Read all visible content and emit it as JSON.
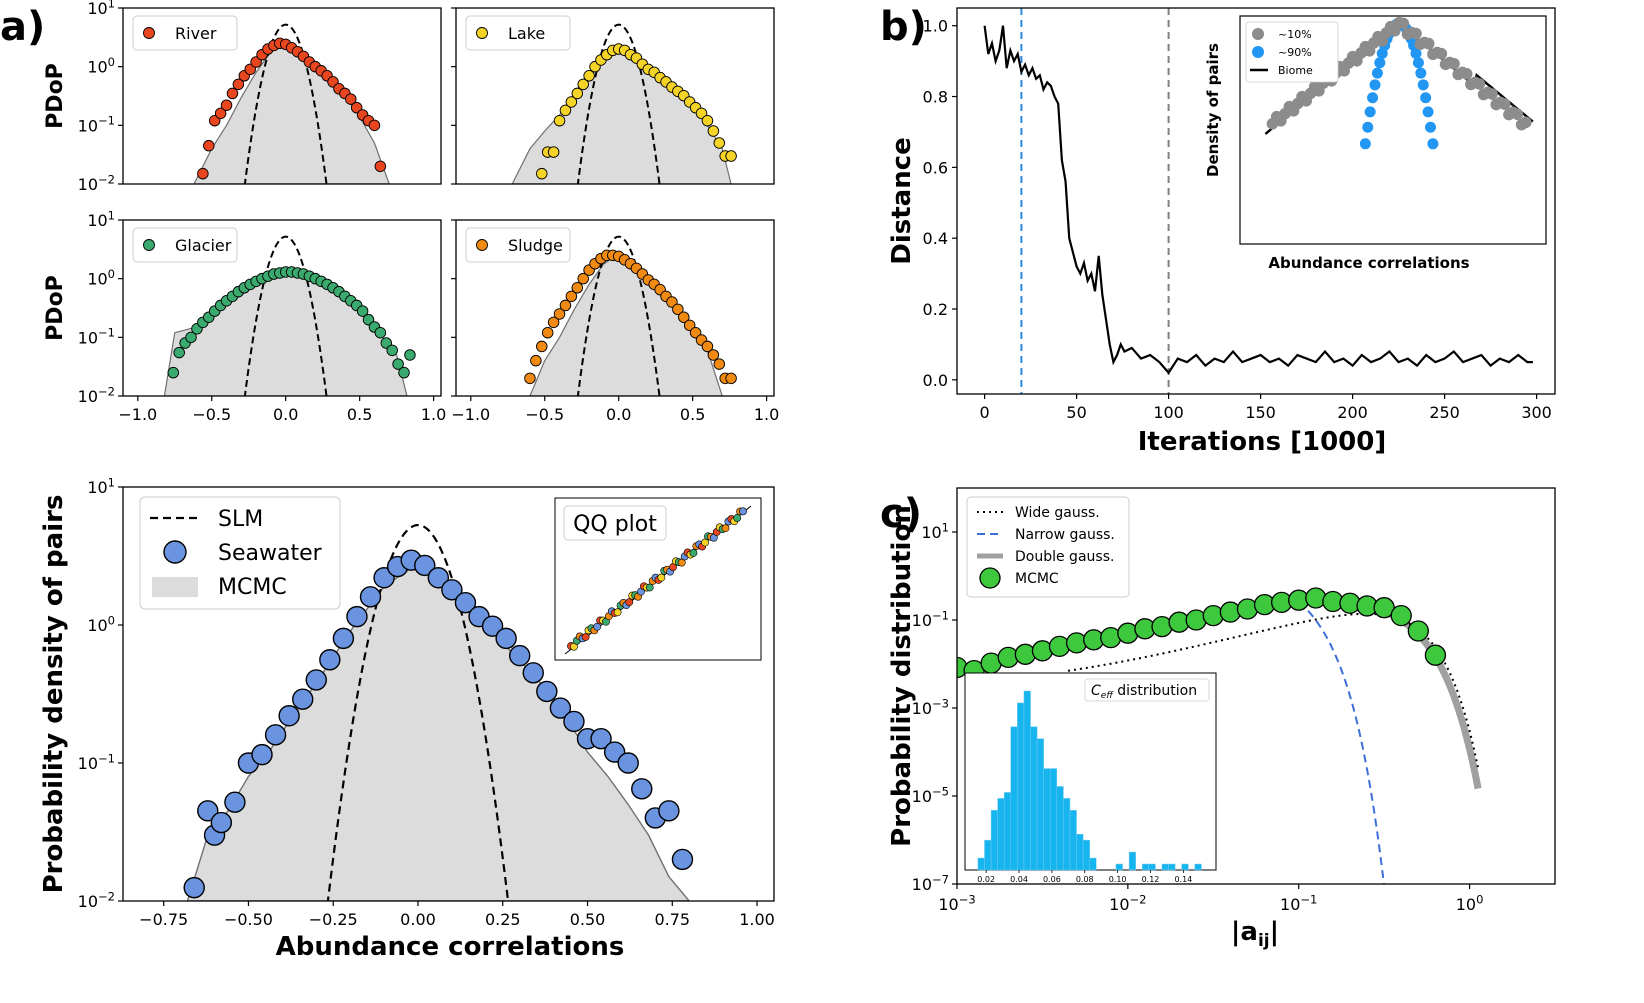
{
  "panel_labels": {
    "a": "a)",
    "b": "b)",
    "c": "c)"
  },
  "colors": {
    "river": "#e8461e",
    "lake": "#f5d327",
    "glacier": "#3aaa6e",
    "sludge": "#f08a12",
    "seawater": "#6a94e0",
    "mcmc_fill": "#dcdcdc",
    "mcmc_line": "#707070",
    "green_marker": "#3ec83e",
    "blue_gauss": "#3d6fd8",
    "hist": "#17b5f0",
    "gray_marker": "#8c8c8c",
    "blue_marker": "#2196f3",
    "vline_blue": "#2c8be0",
    "vline_gray": "#808080"
  },
  "chart_data": [
    {
      "id": "a_small",
      "type": "scatter",
      "ylabel": "PDoP",
      "ylim_log10": [
        -2,
        1
      ],
      "yticks": [
        "10^-2",
        "10^-1",
        "10^0",
        "10^1"
      ],
      "xlim": [
        -1.1,
        1.05
      ],
      "xticks": [
        "−1.0",
        "−0.5",
        "0.0",
        "0.5",
        "1.0"
      ],
      "slm": {
        "amplitude": 5.2,
        "sigma": 0.078
      },
      "subplots": [
        {
          "name": "River",
          "color_key": "river",
          "label": "River",
          "x": [
            -0.56,
            -0.52,
            -0.48,
            -0.44,
            -0.4,
            -0.36,
            -0.32,
            -0.28,
            -0.24,
            -0.2,
            -0.16,
            -0.12,
            -0.08,
            -0.04,
            0.0,
            0.04,
            0.08,
            0.12,
            0.16,
            0.2,
            0.24,
            0.28,
            0.32,
            0.36,
            0.4,
            0.44,
            0.48,
            0.52,
            0.56,
            0.6,
            0.64
          ],
          "y": [
            0.015,
            0.045,
            0.12,
            0.16,
            0.22,
            0.35,
            0.5,
            0.7,
            0.9,
            1.2,
            1.6,
            2.0,
            2.3,
            2.5,
            2.4,
            2.1,
            1.8,
            1.5,
            1.2,
            1.0,
            0.85,
            0.7,
            0.55,
            0.42,
            0.35,
            0.28,
            0.2,
            0.15,
            0.12,
            0.1,
            0.02
          ],
          "mcmc_x": [
            -0.62,
            -0.5,
            -0.4,
            -0.3,
            -0.2,
            -0.1,
            0.0,
            0.1,
            0.2,
            0.3,
            0.4,
            0.5,
            0.6,
            0.7
          ],
          "mcmc_y": [
            0.01,
            0.04,
            0.1,
            0.3,
            0.8,
            1.8,
            2.6,
            1.8,
            1.0,
            0.55,
            0.32,
            0.14,
            0.05,
            0.01
          ]
        },
        {
          "name": "Lake",
          "color_key": "lake",
          "label": "Lake",
          "x": [
            -0.52,
            -0.48,
            -0.44,
            -0.4,
            -0.36,
            -0.32,
            -0.28,
            -0.24,
            -0.2,
            -0.16,
            -0.12,
            -0.08,
            -0.04,
            0.0,
            0.04,
            0.08,
            0.12,
            0.16,
            0.2,
            0.24,
            0.28,
            0.32,
            0.36,
            0.4,
            0.44,
            0.48,
            0.52,
            0.56,
            0.6,
            0.64,
            0.68,
            0.72,
            0.76
          ],
          "y": [
            0.015,
            0.035,
            0.035,
            0.12,
            0.18,
            0.25,
            0.35,
            0.5,
            0.7,
            1.0,
            1.3,
            1.6,
            1.9,
            2.0,
            1.9,
            1.6,
            1.4,
            1.1,
            0.9,
            0.8,
            0.65,
            0.55,
            0.45,
            0.38,
            0.32,
            0.25,
            0.2,
            0.16,
            0.12,
            0.08,
            0.05,
            0.03,
            0.03
          ],
          "mcmc_x": [
            -0.72,
            -0.6,
            -0.5,
            -0.4,
            -0.3,
            -0.2,
            -0.1,
            0.0,
            0.1,
            0.2,
            0.3,
            0.4,
            0.5,
            0.6,
            0.7,
            0.76
          ],
          "mcmc_y": [
            0.01,
            0.04,
            0.08,
            0.15,
            0.35,
            0.8,
            1.6,
            2.1,
            1.7,
            1.0,
            0.6,
            0.38,
            0.2,
            0.1,
            0.04,
            0.01
          ]
        },
        {
          "name": "Glacier",
          "color_key": "glacier",
          "label": "Glacier",
          "x": [
            -0.76,
            -0.72,
            -0.68,
            -0.64,
            -0.6,
            -0.56,
            -0.52,
            -0.48,
            -0.44,
            -0.4,
            -0.36,
            -0.32,
            -0.28,
            -0.24,
            -0.2,
            -0.16,
            -0.12,
            -0.08,
            -0.04,
            0.0,
            0.04,
            0.08,
            0.12,
            0.16,
            0.2,
            0.24,
            0.28,
            0.32,
            0.36,
            0.4,
            0.44,
            0.48,
            0.52,
            0.56,
            0.6,
            0.64,
            0.68,
            0.72,
            0.76,
            0.8,
            0.84
          ],
          "y": [
            0.025,
            0.055,
            0.08,
            0.1,
            0.14,
            0.18,
            0.22,
            0.28,
            0.35,
            0.42,
            0.5,
            0.6,
            0.7,
            0.8,
            0.9,
            1.0,
            1.1,
            1.2,
            1.25,
            1.3,
            1.3,
            1.25,
            1.2,
            1.1,
            1.0,
            0.9,
            0.8,
            0.7,
            0.6,
            0.5,
            0.42,
            0.35,
            0.28,
            0.2,
            0.15,
            0.12,
            0.08,
            0.06,
            0.035,
            0.025,
            0.05
          ],
          "mcmc_x": [
            -0.82,
            -0.75,
            -0.6,
            -0.4,
            -0.2,
            0.0,
            0.2,
            0.4,
            0.6,
            0.75,
            0.82
          ],
          "mcmc_y": [
            0.01,
            0.12,
            0.15,
            0.35,
            0.8,
            1.3,
            1.1,
            0.5,
            0.15,
            0.05,
            0.01
          ]
        },
        {
          "name": "Sludge",
          "color_key": "sludge",
          "label": "Sludge",
          "x": [
            -0.6,
            -0.56,
            -0.52,
            -0.48,
            -0.44,
            -0.4,
            -0.36,
            -0.32,
            -0.28,
            -0.24,
            -0.2,
            -0.16,
            -0.12,
            -0.08,
            -0.04,
            0.0,
            0.04,
            0.08,
            0.12,
            0.16,
            0.2,
            0.24,
            0.28,
            0.32,
            0.36,
            0.4,
            0.44,
            0.48,
            0.52,
            0.56,
            0.6,
            0.64,
            0.68,
            0.72,
            0.76
          ],
          "y": [
            0.02,
            0.04,
            0.07,
            0.12,
            0.18,
            0.25,
            0.35,
            0.5,
            0.7,
            1.0,
            1.4,
            1.8,
            2.2,
            2.5,
            2.5,
            2.4,
            2.1,
            1.8,
            1.5,
            1.2,
            0.95,
            0.8,
            0.65,
            0.5,
            0.4,
            0.3,
            0.22,
            0.16,
            0.12,
            0.09,
            0.07,
            0.05,
            0.035,
            0.02,
            0.02
          ],
          "mcmc_x": [
            -0.6,
            -0.5,
            -0.4,
            -0.3,
            -0.2,
            -0.1,
            0.0,
            0.1,
            0.2,
            0.3,
            0.4,
            0.5,
            0.6,
            0.7
          ],
          "mcmc_y": [
            0.01,
            0.04,
            0.1,
            0.3,
            0.8,
            1.8,
            2.6,
            1.9,
            1.1,
            0.6,
            0.35,
            0.15,
            0.06,
            0.01
          ]
        }
      ]
    },
    {
      "id": "a_main",
      "type": "scatter",
      "xlabel": "Abundance correlations",
      "ylabel": "Probability density of pairs",
      "xlim": [
        -0.87,
        1.05
      ],
      "ylim_log10": [
        -2,
        1
      ],
      "xticks": [
        "−0.75",
        "−0.50",
        "−0.25",
        "0.00",
        "0.25",
        "0.50",
        "0.75",
        "1.00"
      ],
      "yticks": [
        "10^-2",
        "10^-1",
        "10^0",
        "10^1"
      ],
      "legend": [
        "SLM",
        "Seawater",
        "MCMC"
      ],
      "inset_label": "QQ plot",
      "seawater": {
        "x": [
          -0.66,
          -0.62,
          -0.6,
          -0.58,
          -0.54,
          -0.5,
          -0.46,
          -0.42,
          -0.38,
          -0.34,
          -0.3,
          -0.26,
          -0.22,
          -0.18,
          -0.14,
          -0.1,
          -0.06,
          -0.02,
          0.02,
          0.06,
          0.1,
          0.14,
          0.18,
          0.22,
          0.26,
          0.3,
          0.34,
          0.38,
          0.42,
          0.46,
          0.5,
          0.54,
          0.58,
          0.62,
          0.66,
          0.7,
          0.74,
          0.78
        ],
        "y": [
          0.0125,
          0.045,
          0.03,
          0.037,
          0.052,
          0.1,
          0.115,
          0.16,
          0.22,
          0.29,
          0.4,
          0.56,
          0.8,
          1.15,
          1.6,
          2.2,
          2.65,
          2.95,
          2.7,
          2.2,
          1.8,
          1.45,
          1.15,
          0.98,
          0.8,
          0.6,
          0.45,
          0.33,
          0.25,
          0.2,
          0.15,
          0.15,
          0.12,
          0.1,
          0.065,
          0.04,
          0.045,
          0.02
        ]
      },
      "mcmc_x": [
        -0.68,
        -0.62,
        -0.56,
        -0.5,
        -0.44,
        -0.38,
        -0.3,
        -0.2,
        -0.1,
        0.0,
        0.1,
        0.2,
        0.3,
        0.4,
        0.5,
        0.56,
        0.62,
        0.68,
        0.74,
        0.8
      ],
      "mcmc_y": [
        0.01,
        0.03,
        0.045,
        0.08,
        0.12,
        0.2,
        0.38,
        0.9,
        1.9,
        2.8,
        2.0,
        1.0,
        0.55,
        0.3,
        0.12,
        0.08,
        0.05,
        0.03,
        0.015,
        0.01
      ],
      "slm": {
        "amplitude": 5.3,
        "sigma": 0.075
      }
    },
    {
      "id": "b",
      "type": "line",
      "xlabel": "Iterations [1000]",
      "ylabel": "Distance",
      "xlim": [
        -15,
        310
      ],
      "ylim": [
        -0.04,
        1.05
      ],
      "xticks": [
        "0",
        "50",
        "100",
        "150",
        "200",
        "250",
        "300"
      ],
      "yticks": [
        "0.0",
        "0.2",
        "0.4",
        "0.6",
        "0.8",
        "1.0"
      ],
      "x": [
        0,
        2,
        4,
        6,
        8,
        10,
        12,
        14,
        16,
        18,
        20,
        22,
        24,
        26,
        28,
        30,
        32,
        34,
        36,
        38,
        40,
        42,
        44,
        46,
        48,
        50,
        52,
        54,
        56,
        58,
        60,
        62,
        64,
        66,
        68,
        70,
        72,
        74,
        76,
        80,
        85,
        90,
        95,
        100,
        105,
        110,
        115,
        120,
        125,
        130,
        135,
        140,
        145,
        150,
        155,
        160,
        165,
        170,
        175,
        180,
        185,
        190,
        195,
        200,
        205,
        210,
        215,
        220,
        225,
        230,
        235,
        240,
        245,
        250,
        255,
        260,
        265,
        270,
        275,
        280,
        285,
        290,
        295,
        298
      ],
      "y": [
        1.0,
        0.92,
        0.95,
        0.9,
        0.93,
        1.0,
        0.88,
        0.93,
        0.9,
        0.92,
        0.87,
        0.89,
        0.86,
        0.88,
        0.85,
        0.86,
        0.82,
        0.84,
        0.83,
        0.8,
        0.78,
        0.62,
        0.56,
        0.4,
        0.36,
        0.32,
        0.3,
        0.33,
        0.28,
        0.3,
        0.25,
        0.35,
        0.24,
        0.17,
        0.1,
        0.05,
        0.07,
        0.1,
        0.08,
        0.09,
        0.06,
        0.07,
        0.05,
        0.02,
        0.06,
        0.05,
        0.07,
        0.04,
        0.06,
        0.05,
        0.08,
        0.05,
        0.06,
        0.07,
        0.05,
        0.06,
        0.04,
        0.07,
        0.06,
        0.05,
        0.08,
        0.05,
        0.06,
        0.04,
        0.07,
        0.05,
        0.06,
        0.08,
        0.05,
        0.06,
        0.04,
        0.07,
        0.05,
        0.06,
        0.08,
        0.05,
        0.06,
        0.07,
        0.04,
        0.06,
        0.05,
        0.07,
        0.05,
        0.05
      ],
      "vlines": [
        {
          "x": 20,
          "color_key": "vline_blue"
        },
        {
          "x": 100,
          "color_key": "vline_gray"
        }
      ],
      "inset": {
        "xlabel": "Abundance correlations",
        "ylabel": "Density of pairs",
        "legend": [
          "~10%",
          "~90%",
          "Biome"
        ],
        "gray_sigma": 0.3,
        "blue_sigma": 0.08
      }
    },
    {
      "id": "c",
      "type": "line",
      "xlabel": "|a_ij|",
      "xlabel_sub": "ij",
      "xlabel_main": "|a",
      "ylabel": "Probability distribution",
      "xlim_log10": [
        -3,
        0.5
      ],
      "ylim_log10": [
        -7,
        2
      ],
      "xticks": [
        "10^-3",
        "10^-2",
        "10^-1",
        "10^0"
      ],
      "yticks": [
        "10^-7",
        "10^-5",
        "10^-3",
        "10^-1",
        "10^1"
      ],
      "legend": [
        "Wide gauss.",
        "Narrow gauss.",
        "Double gauss.",
        "MCMC"
      ],
      "mcmc_log10x": [
        -3.0,
        -2.9,
        -2.8,
        -2.7,
        -2.6,
        -2.5,
        -2.4,
        -2.3,
        -2.2,
        -2.1,
        -2.0,
        -1.9,
        -1.8,
        -1.7,
        -1.6,
        -1.5,
        -1.4,
        -1.3,
        -1.2,
        -1.1,
        -1.0,
        -0.9,
        -0.8,
        -0.7,
        -0.6,
        -0.5,
        -0.4,
        -0.3,
        -0.2
      ],
      "mcmc_log10y": [
        -2.08,
        -2.15,
        -1.98,
        -1.85,
        -1.78,
        -1.7,
        -1.6,
        -1.52,
        -1.45,
        -1.4,
        -1.3,
        -1.2,
        -1.15,
        -1.05,
        -1.0,
        -0.9,
        -0.82,
        -0.75,
        -0.65,
        -0.6,
        -0.55,
        -0.5,
        -0.58,
        -0.62,
        -0.68,
        -0.72,
        -0.9,
        -1.25,
        -1.8
      ],
      "inset": {
        "title": "C_eff distribution",
        "title_main": "C",
        "title_sub": "eff",
        "title_rest": " distribution",
        "xticks": [
          "0.02",
          "0.04",
          "0.06",
          "0.08",
          "0.10",
          "0.12",
          "0.14"
        ],
        "bin_edges": [
          0.015,
          0.019,
          0.023,
          0.027,
          0.031,
          0.035,
          0.039,
          0.043,
          0.047,
          0.051,
          0.055,
          0.059,
          0.063,
          0.067,
          0.071,
          0.075,
          0.079,
          0.083,
          0.087,
          0.091,
          0.095,
          0.099,
          0.103,
          0.107,
          0.111,
          0.115,
          0.119,
          0.123,
          0.127,
          0.131,
          0.135,
          0.139,
          0.143,
          0.147,
          0.151
        ],
        "counts": [
          2,
          5,
          10,
          12,
          13,
          24,
          28,
          30,
          24,
          22,
          17,
          17,
          14,
          12,
          10,
          6,
          5,
          2,
          0,
          0,
          0,
          1,
          0,
          3,
          0,
          1,
          1,
          0,
          1,
          1,
          0,
          1,
          0,
          1
        ]
      }
    }
  ]
}
